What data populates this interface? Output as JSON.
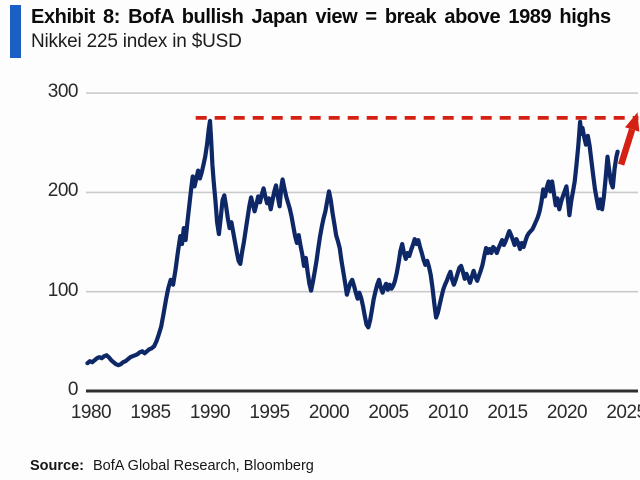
{
  "header": {
    "accent_bar_color": "#1b5ec4",
    "title": "Exhibit 8: BofA bullish Japan view = break above 1989 highs",
    "subtitle": "Nikkei 225 index in $USD"
  },
  "footer": {
    "source_label": "Source:",
    "source_text": "BofA Global Research, Bloomberg"
  },
  "chart_data": {
    "type": "line",
    "title": "Nikkei 225 index in $USD",
    "grid": "horizontal",
    "grid_color": "#cbcbcb",
    "axis_color": "#2f2f2f",
    "x_axis": {
      "ticks": [
        1980,
        1985,
        1990,
        1995,
        2000,
        2005,
        2010,
        2015,
        2020,
        2025
      ],
      "tick_labels": [
        "1980",
        "1985",
        "1990",
        "1995",
        "2000",
        "2005",
        "2010",
        "2015",
        "2020",
        "2025"
      ],
      "range": [
        1979.5,
        2026
      ]
    },
    "y_axis": {
      "ticks": [
        0,
        100,
        200,
        300
      ],
      "tick_labels": [
        "0",
        "100",
        "200",
        "300"
      ],
      "range": [
        0,
        300
      ]
    },
    "series": [
      {
        "name": "Nikkei 225 index in $USD",
        "color": "#0e2766",
        "points": [
          [
            1979.7,
            28
          ],
          [
            1979.9,
            30
          ],
          [
            1980.1,
            29
          ],
          [
            1980.3,
            31
          ],
          [
            1980.5,
            33
          ],
          [
            1980.7,
            34
          ],
          [
            1980.9,
            33
          ],
          [
            1981.1,
            35
          ],
          [
            1981.3,
            36
          ],
          [
            1981.5,
            34
          ],
          [
            1981.7,
            31
          ],
          [
            1981.9,
            29
          ],
          [
            1982.1,
            27
          ],
          [
            1982.3,
            26
          ],
          [
            1982.5,
            27
          ],
          [
            1982.7,
            29
          ],
          [
            1982.9,
            30
          ],
          [
            1983.1,
            32
          ],
          [
            1983.3,
            34
          ],
          [
            1983.5,
            35
          ],
          [
            1983.7,
            36
          ],
          [
            1983.9,
            37
          ],
          [
            1984.1,
            39
          ],
          [
            1984.3,
            40
          ],
          [
            1984.5,
            38
          ],
          [
            1984.7,
            40
          ],
          [
            1984.9,
            42
          ],
          [
            1985.1,
            43
          ],
          [
            1985.3,
            45
          ],
          [
            1985.5,
            50
          ],
          [
            1985.7,
            57
          ],
          [
            1985.9,
            65
          ],
          [
            1986.1,
            78
          ],
          [
            1986.3,
            92
          ],
          [
            1986.5,
            104
          ],
          [
            1986.7,
            112
          ],
          [
            1986.9,
            107
          ],
          [
            1987.1,
            122
          ],
          [
            1987.3,
            140
          ],
          [
            1987.5,
            156
          ],
          [
            1987.65,
            148
          ],
          [
            1987.8,
            164
          ],
          [
            1987.95,
            152
          ],
          [
            1988.1,
            170
          ],
          [
            1988.25,
            186
          ],
          [
            1988.4,
            202
          ],
          [
            1988.55,
            216
          ],
          [
            1988.7,
            206
          ],
          [
            1988.85,
            214
          ],
          [
            1989.0,
            222
          ],
          [
            1989.15,
            214
          ],
          [
            1989.3,
            220
          ],
          [
            1989.45,
            228
          ],
          [
            1989.6,
            236
          ],
          [
            1989.75,
            248
          ],
          [
            1989.9,
            264
          ],
          [
            1990.0,
            272
          ],
          [
            1990.1,
            252
          ],
          [
            1990.2,
            228
          ],
          [
            1990.3,
            212
          ],
          [
            1990.45,
            192
          ],
          [
            1990.6,
            170
          ],
          [
            1990.75,
            158
          ],
          [
            1990.9,
            174
          ],
          [
            1991.05,
            192
          ],
          [
            1991.2,
            197
          ],
          [
            1991.35,
            186
          ],
          [
            1991.5,
            174
          ],
          [
            1991.65,
            164
          ],
          [
            1991.8,
            170
          ],
          [
            1991.95,
            160
          ],
          [
            1992.1,
            150
          ],
          [
            1992.25,
            140
          ],
          [
            1992.4,
            131
          ],
          [
            1992.55,
            128
          ],
          [
            1992.7,
            140
          ],
          [
            1992.85,
            150
          ],
          [
            1993.0,
            162
          ],
          [
            1993.15,
            174
          ],
          [
            1993.3,
            186
          ],
          [
            1993.45,
            195
          ],
          [
            1993.6,
            188
          ],
          [
            1993.75,
            181
          ],
          [
            1993.9,
            188
          ],
          [
            1994.05,
            196
          ],
          [
            1994.2,
            190
          ],
          [
            1994.35,
            198
          ],
          [
            1994.5,
            204
          ],
          [
            1994.65,
            196
          ],
          [
            1994.8,
            189
          ],
          [
            1994.95,
            194
          ],
          [
            1995.1,
            183
          ],
          [
            1995.25,
            192
          ],
          [
            1995.4,
            201
          ],
          [
            1995.55,
            207
          ],
          [
            1995.7,
            196
          ],
          [
            1995.85,
            186
          ],
          [
            1996.0,
            206
          ],
          [
            1996.1,
            213
          ],
          [
            1996.25,
            204
          ],
          [
            1996.4,
            196
          ],
          [
            1996.55,
            190
          ],
          [
            1996.7,
            184
          ],
          [
            1996.85,
            176
          ],
          [
            1997.0,
            166
          ],
          [
            1997.15,
            156
          ],
          [
            1997.3,
            149
          ],
          [
            1997.45,
            157
          ],
          [
            1997.6,
            147
          ],
          [
            1997.75,
            138
          ],
          [
            1997.9,
            126
          ],
          [
            1998.05,
            134
          ],
          [
            1998.2,
            120
          ],
          [
            1998.35,
            108
          ],
          [
            1998.5,
            101
          ],
          [
            1998.65,
            110
          ],
          [
            1998.8,
            120
          ],
          [
            1998.95,
            131
          ],
          [
            1999.1,
            144
          ],
          [
            1999.25,
            156
          ],
          [
            1999.4,
            166
          ],
          [
            1999.55,
            174
          ],
          [
            1999.7,
            181
          ],
          [
            1999.85,
            191
          ],
          [
            2000.0,
            201
          ],
          [
            2000.15,
            192
          ],
          [
            2000.3,
            179
          ],
          [
            2000.45,
            168
          ],
          [
            2000.6,
            157
          ],
          [
            2000.75,
            151
          ],
          [
            2000.9,
            144
          ],
          [
            2001.05,
            131
          ],
          [
            2001.2,
            120
          ],
          [
            2001.35,
            109
          ],
          [
            2001.5,
            97
          ],
          [
            2001.65,
            103
          ],
          [
            2001.8,
            109
          ],
          [
            2001.95,
            112
          ],
          [
            2002.1,
            106
          ],
          [
            2002.25,
            99
          ],
          [
            2002.4,
            93
          ],
          [
            2002.55,
            99
          ],
          [
            2002.7,
            94
          ],
          [
            2002.85,
            86
          ],
          [
            2003.0,
            76
          ],
          [
            2003.15,
            67
          ],
          [
            2003.3,
            64
          ],
          [
            2003.45,
            71
          ],
          [
            2003.6,
            81
          ],
          [
            2003.75,
            92
          ],
          [
            2003.9,
            100
          ],
          [
            2004.05,
            107
          ],
          [
            2004.2,
            112
          ],
          [
            2004.35,
            104
          ],
          [
            2004.5,
            99
          ],
          [
            2004.65,
            104
          ],
          [
            2004.8,
            108
          ],
          [
            2004.95,
            102
          ],
          [
            2005.1,
            107
          ],
          [
            2005.25,
            103
          ],
          [
            2005.4,
            106
          ],
          [
            2005.55,
            111
          ],
          [
            2005.7,
            119
          ],
          [
            2005.85,
            129
          ],
          [
            2006.0,
            141
          ],
          [
            2006.15,
            148
          ],
          [
            2006.3,
            139
          ],
          [
            2006.45,
            133
          ],
          [
            2006.6,
            139
          ],
          [
            2006.75,
            136
          ],
          [
            2006.9,
            142
          ],
          [
            2007.05,
            147
          ],
          [
            2007.2,
            153
          ],
          [
            2007.35,
            148
          ],
          [
            2007.5,
            152
          ],
          [
            2007.65,
            145
          ],
          [
            2007.8,
            139
          ],
          [
            2007.95,
            132
          ],
          [
            2008.1,
            127
          ],
          [
            2008.25,
            131
          ],
          [
            2008.4,
            125
          ],
          [
            2008.55,
            117
          ],
          [
            2008.7,
            104
          ],
          [
            2008.85,
            88
          ],
          [
            2009.0,
            74
          ],
          [
            2009.15,
            79
          ],
          [
            2009.3,
            87
          ],
          [
            2009.45,
            95
          ],
          [
            2009.6,
            102
          ],
          [
            2009.75,
            107
          ],
          [
            2009.9,
            111
          ],
          [
            2010.05,
            116
          ],
          [
            2010.2,
            120
          ],
          [
            2010.35,
            112
          ],
          [
            2010.5,
            107
          ],
          [
            2010.65,
            112
          ],
          [
            2010.8,
            118
          ],
          [
            2010.95,
            124
          ],
          [
            2011.1,
            126
          ],
          [
            2011.25,
            120
          ],
          [
            2011.4,
            113
          ],
          [
            2011.55,
            118
          ],
          [
            2011.7,
            114
          ],
          [
            2011.85,
            109
          ],
          [
            2012.0,
            115
          ],
          [
            2012.15,
            121
          ],
          [
            2012.3,
            115
          ],
          [
            2012.45,
            111
          ],
          [
            2012.6,
            116
          ],
          [
            2012.75,
            121
          ],
          [
            2012.9,
            127
          ],
          [
            2013.05,
            136
          ],
          [
            2013.2,
            144
          ],
          [
            2013.35,
            139
          ],
          [
            2013.5,
            143
          ],
          [
            2013.65,
            139
          ],
          [
            2013.8,
            145
          ],
          [
            2013.95,
            143
          ],
          [
            2014.1,
            139
          ],
          [
            2014.25,
            144
          ],
          [
            2014.4,
            148
          ],
          [
            2014.55,
            152
          ],
          [
            2014.7,
            147
          ],
          [
            2014.85,
            151
          ],
          [
            2015.0,
            156
          ],
          [
            2015.15,
            161
          ],
          [
            2015.3,
            157
          ],
          [
            2015.45,
            152
          ],
          [
            2015.6,
            147
          ],
          [
            2015.75,
            153
          ],
          [
            2015.9,
            149
          ],
          [
            2016.05,
            143
          ],
          [
            2016.2,
            149
          ],
          [
            2016.35,
            145
          ],
          [
            2016.5,
            151
          ],
          [
            2016.65,
            156
          ],
          [
            2016.8,
            159
          ],
          [
            2016.95,
            161
          ],
          [
            2017.1,
            163
          ],
          [
            2017.25,
            167
          ],
          [
            2017.4,
            171
          ],
          [
            2017.55,
            175
          ],
          [
            2017.7,
            181
          ],
          [
            2017.85,
            190
          ],
          [
            2018.0,
            203
          ],
          [
            2018.15,
            196
          ],
          [
            2018.3,
            205
          ],
          [
            2018.45,
            211
          ],
          [
            2018.6,
            201
          ],
          [
            2018.75,
            211
          ],
          [
            2018.9,
            199
          ],
          [
            2019.05,
            187
          ],
          [
            2019.2,
            194
          ],
          [
            2019.35,
            183
          ],
          [
            2019.5,
            190
          ],
          [
            2019.65,
            196
          ],
          [
            2019.8,
            201
          ],
          [
            2019.95,
            206
          ],
          [
            2020.1,
            190
          ],
          [
            2020.2,
            177
          ],
          [
            2020.35,
            191
          ],
          [
            2020.5,
            201
          ],
          [
            2020.65,
            211
          ],
          [
            2020.8,
            228
          ],
          [
            2020.95,
            247
          ],
          [
            2021.1,
            271
          ],
          [
            2021.2,
            259
          ],
          [
            2021.3,
            265
          ],
          [
            2021.45,
            255
          ],
          [
            2021.6,
            248
          ],
          [
            2021.75,
            257
          ],
          [
            2021.9,
            247
          ],
          [
            2022.05,
            232
          ],
          [
            2022.2,
            217
          ],
          [
            2022.35,
            203
          ],
          [
            2022.5,
            193
          ],
          [
            2022.65,
            184
          ],
          [
            2022.8,
            193
          ],
          [
            2022.95,
            183
          ],
          [
            2023.1,
            196
          ],
          [
            2023.25,
            215
          ],
          [
            2023.4,
            236
          ],
          [
            2023.55,
            222
          ],
          [
            2023.7,
            210
          ],
          [
            2023.85,
            205
          ],
          [
            2024.0,
            224
          ],
          [
            2024.15,
            236
          ],
          [
            2024.25,
            241
          ]
        ]
      }
    ],
    "annotations": [
      {
        "type": "hline",
        "name": "1989-high-resistance-line",
        "style": "dashed",
        "color": "#d42114",
        "value": 275,
        "from_x": 1988.8,
        "to_x": 2026
      },
      {
        "type": "arrow",
        "name": "breakout-arrow",
        "color": "#d42114",
        "from": [
          2024.55,
          228
        ],
        "to": [
          2025.7,
          272
        ]
      }
    ]
  }
}
